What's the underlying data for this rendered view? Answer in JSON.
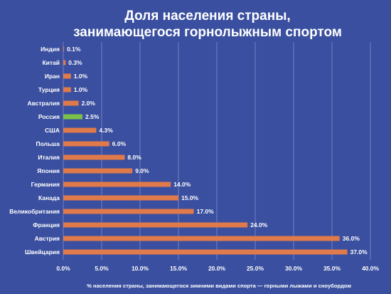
{
  "colors": {
    "background": "#3a4f9f",
    "bar": "#e07a4a",
    "highlight_bar": "#7cc04a",
    "text": "#ffffff",
    "grid": "#7f8fc8"
  },
  "chart_data": {
    "type": "bar",
    "orientation": "horizontal",
    "title_lines": [
      "Доля населения страны,",
      "занимающегося горнолыжным спортом"
    ],
    "categories": [
      "Индия",
      "Китай",
      "Иран",
      "Турция",
      "Австралия",
      "Россия",
      "США",
      "Польша",
      "Италия",
      "Япония",
      "Германия",
      "Канада",
      "Великобритания",
      "Франция",
      "Австрия",
      "Швейцария"
    ],
    "values": [
      0.1,
      0.3,
      1.0,
      1.0,
      2.0,
      2.5,
      4.3,
      6.0,
      8.0,
      9.0,
      14.0,
      15.0,
      17.0,
      24.0,
      36.0,
      37.0
    ],
    "value_labels": [
      "0.1%",
      "0.3%",
      "1.0%",
      "1.0%",
      "2.0%",
      "2.5%",
      "4.3%",
      "6.0%",
      "8.0%",
      "9.0%",
      "14.0%",
      "15.0%",
      "17.0%",
      "24.0%",
      "36.0%",
      "37.0%"
    ],
    "highlight_category": "Россия",
    "xlim": [
      0,
      40
    ],
    "x_ticks": [
      0,
      5,
      10,
      15,
      20,
      25,
      30,
      35,
      40
    ],
    "x_tick_labels": [
      "0.0%",
      "5.0%",
      "10.0%",
      "15.0%",
      "20.0%",
      "25.0%",
      "30.0%",
      "35.0%",
      "40.0%"
    ],
    "xlabel": "% населения страны, занимающегося зимними видами спорта — горными лыжами и сноубордом",
    "ylabel": "",
    "grid": "vertical",
    "legend": "none"
  }
}
